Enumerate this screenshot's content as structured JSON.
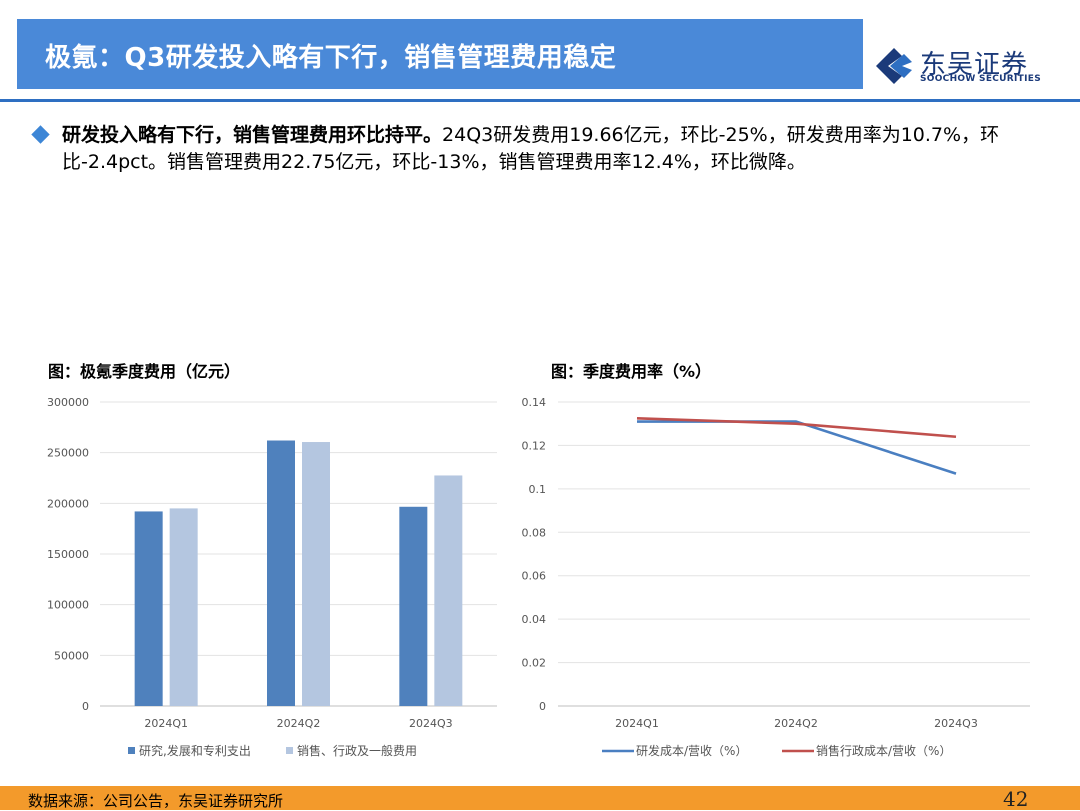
{
  "header": {
    "title": "极氪：Q3研发投入略有下行，销售管理费用稳定"
  },
  "logo": {
    "cn": "东吴证券",
    "en": "SOOCHOW SECURITIES"
  },
  "bullet": {
    "bold": "研发投入略有下行，销售管理费用环比持平。",
    "text": "24Q3研发费用19.66亿元，环比-25%，研发费用率为10.7%，环比-2.4pct。销售管理费用22.75亿元，环比-13%，销售管理费用率12.4%，环比微降。"
  },
  "chart_titles": {
    "left": "图：极氪季度费用（亿元）",
    "right": "图：季度费用率（%）"
  },
  "colors": {
    "rd": "#4f81bd",
    "sga": "#b4c6e0",
    "line_rd": "#4a7fc1",
    "line_sga": "#c0504d"
  },
  "chart_data": [
    {
      "type": "bar",
      "title": "图：极氪季度费用（亿元）",
      "categories": [
        "2024Q1",
        "2024Q2",
        "2024Q3"
      ],
      "ylim": [
        0,
        300000
      ],
      "yticks": [
        "0",
        "50000",
        "100000",
        "150000",
        "200000",
        "250000",
        "300000"
      ],
      "grid": true,
      "legend_position": "bottom",
      "series": [
        {
          "name": "研究,发展和专利支出",
          "values": [
            192000,
            262000,
            196600
          ]
        },
        {
          "name": "销售、行政及一般费用",
          "values": [
            195000,
            260500,
            227500
          ]
        }
      ]
    },
    {
      "type": "line",
      "title": "图：季度费用率（%）",
      "categories": [
        "2024Q1",
        "2024Q2",
        "2024Q3"
      ],
      "ylim": [
        0,
        0.14
      ],
      "yticks": [
        "0",
        "0.02",
        "0.04",
        "0.06",
        "0.08",
        "0.1",
        "0.12",
        "0.14"
      ],
      "grid": true,
      "legend_position": "bottom",
      "series": [
        {
          "name": "研发成本/营收（%）",
          "values": [
            0.131,
            0.131,
            0.107
          ]
        },
        {
          "name": "销售行政成本/营收（%）",
          "values": [
            0.1325,
            0.13,
            0.124
          ]
        }
      ]
    }
  ],
  "footer": {
    "source": "数据来源：公司公告，东吴证券研究所",
    "page": "42"
  }
}
